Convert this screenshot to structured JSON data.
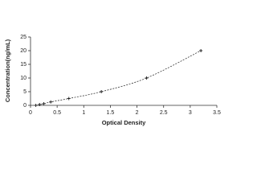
{
  "chart_data": {
    "type": "scatter",
    "x_label": "Optical Density",
    "y_label": "Concentration(ng/mL)",
    "x": [
      0.1,
      0.17,
      0.25,
      0.38,
      0.72,
      1.33,
      2.18,
      3.2
    ],
    "values": [
      0,
      0.3,
      0.6,
      1.25,
      2.5,
      5,
      10,
      20
    ],
    "color": "#222222",
    "xlim": [
      0,
      3.5
    ],
    "xticks": [
      0,
      0.5,
      1,
      1.5,
      2,
      2.5,
      3,
      3.5
    ],
    "ylim": [
      0,
      25
    ],
    "yticks": [
      0,
      5,
      10,
      15,
      20,
      25
    ],
    "line_style": "dashed"
  }
}
